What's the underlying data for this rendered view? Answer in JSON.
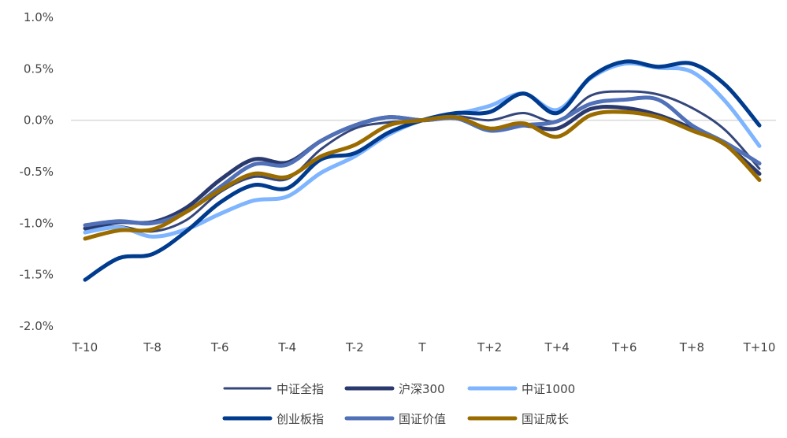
{
  "chart_data": {
    "type": "line",
    "x": [
      "T-10",
      "T-9",
      "T-8",
      "T-7",
      "T-6",
      "T-5",
      "T-4",
      "T-3",
      "T-2",
      "T-1",
      "T",
      "T+1",
      "T+2",
      "T+3",
      "T+4",
      "T+5",
      "T+6",
      "T+7",
      "T+8",
      "T+9",
      "T+10"
    ],
    "xticks": [
      "T-10",
      "T-8",
      "T-6",
      "T-4",
      "T-2",
      "T",
      "T+2",
      "T+4",
      "T+6",
      "T+8",
      "T+10"
    ],
    "ylim": [
      -2.0,
      1.0
    ],
    "yticks": [
      "1.0%",
      "0.5%",
      "0.0%",
      "-0.5%",
      "-1.0%",
      "-1.5%",
      "-2.0%"
    ],
    "ytick_values": [
      1.0,
      0.5,
      0.0,
      -0.5,
      -1.0,
      -1.5,
      -2.0
    ],
    "yunit": "%",
    "grid": "zero line only",
    "legend": "bottom",
    "series": [
      {
        "name": "中证全指",
        "color": "#34467a",
        "width": 3,
        "values": [
          -1.06,
          -1.03,
          -1.08,
          -0.97,
          -0.7,
          -0.55,
          -0.57,
          -0.28,
          -0.08,
          -0.02,
          0,
          0.04,
          0.0,
          0.07,
          -0.01,
          0.24,
          0.28,
          0.25,
          0.12,
          -0.1,
          -0.47
        ]
      },
      {
        "name": "沪深300",
        "color": "#2b3a6e",
        "width": 5,
        "values": [
          -1.05,
          -0.99,
          -0.99,
          -0.85,
          -0.58,
          -0.38,
          -0.41,
          -0.2,
          -0.05,
          0.03,
          0,
          0.02,
          -0.09,
          -0.05,
          -0.08,
          0.11,
          0.12,
          0.05,
          -0.08,
          -0.24,
          -0.52
        ]
      },
      {
        "name": "中证1000",
        "color": "#7fb4ff",
        "width": 5,
        "values": [
          -1.09,
          -1.04,
          -1.13,
          -1.06,
          -0.91,
          -0.78,
          -0.74,
          -0.51,
          -0.35,
          -0.14,
          0,
          0.06,
          0.14,
          0.26,
          0.1,
          0.41,
          0.55,
          0.51,
          0.47,
          0.18,
          -0.25
        ]
      },
      {
        "name": "创业板指",
        "color": "#003b8e",
        "width": 5,
        "values": [
          -1.55,
          -1.34,
          -1.3,
          -1.08,
          -0.8,
          -0.63,
          -0.66,
          -0.38,
          -0.32,
          -0.12,
          0,
          0.07,
          0.08,
          0.26,
          0.07,
          0.42,
          0.57,
          0.52,
          0.55,
          0.34,
          -0.05
        ]
      },
      {
        "name": "国证价值",
        "color": "#5070b8",
        "width": 5,
        "values": [
          -1.02,
          -0.98,
          -1.0,
          -0.89,
          -0.65,
          -0.43,
          -0.43,
          -0.2,
          -0.05,
          0.03,
          0,
          0.02,
          -0.1,
          -0.05,
          -0.01,
          0.16,
          0.2,
          0.2,
          -0.05,
          -0.22,
          -0.42
        ]
      },
      {
        "name": "国证成长",
        "color": "#9a6c00",
        "width": 5,
        "values": [
          -1.15,
          -1.07,
          -1.06,
          -0.89,
          -0.68,
          -0.52,
          -0.55,
          -0.35,
          -0.24,
          -0.05,
          0,
          0.03,
          -0.08,
          -0.03,
          -0.16,
          0.05,
          0.08,
          0.03,
          -0.1,
          -0.24,
          -0.58
        ]
      }
    ]
  }
}
